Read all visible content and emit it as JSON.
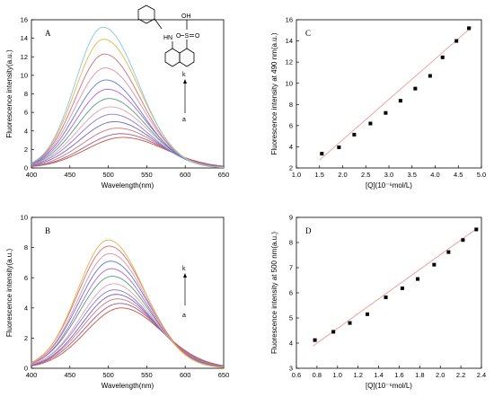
{
  "colors": {
    "spectra": [
      "#c8503c",
      "#a05a8c",
      "#d27878",
      "#6e64c8",
      "#8c78d2",
      "#e6a0b4",
      "#50a078",
      "#b464d2",
      "#5a78dc",
      "#e690a0",
      "#d26e78",
      "#e6b446",
      "#82c8e6"
    ],
    "fit_line": "#f08c8c",
    "points": "#000000",
    "axis": "#000000"
  },
  "annotations": {
    "panel_a": {
      "top": "k",
      "bottom": "a"
    },
    "panel_b": {
      "top": "k",
      "bottom": "a"
    }
  },
  "structure": {
    "name": "8-anilino-1-naphthalenesulfonic acid",
    "labels": {
      "hn": "HN",
      "oh": "OH",
      "s": "S",
      "o1": "O",
      "o2": "O"
    }
  },
  "chart_data": [
    {
      "id": "A",
      "type": "line",
      "title": "A",
      "xlabel": "Wavelength(nm)",
      "ylabel": "Fluorescence intensity(a.u.)",
      "xlim": [
        400,
        650
      ],
      "ylim": [
        0,
        16
      ],
      "xticks": [
        400,
        450,
        500,
        550,
        600,
        650
      ],
      "yticks": [
        0,
        2,
        4,
        6,
        8,
        10,
        12,
        14,
        16
      ],
      "series": [
        {
          "peak_x": 519,
          "peak_y": 3.3,
          "sigma_left": 48,
          "sigma_right": 55
        },
        {
          "peak_x": 516,
          "peak_y": 3.7,
          "sigma_left": 47,
          "sigma_right": 54
        },
        {
          "peak_x": 512,
          "peak_y": 4.3,
          "sigma_left": 46,
          "sigma_right": 52
        },
        {
          "peak_x": 508,
          "peak_y": 5.0,
          "sigma_left": 45,
          "sigma_right": 51
        },
        {
          "peak_x": 505,
          "peak_y": 5.8,
          "sigma_left": 44,
          "sigma_right": 50
        },
        {
          "peak_x": 503,
          "peak_y": 6.6,
          "sigma_left": 43,
          "sigma_right": 50
        },
        {
          "peak_x": 501,
          "peak_y": 7.5,
          "sigma_left": 42,
          "sigma_right": 49
        },
        {
          "peak_x": 499,
          "peak_y": 8.5,
          "sigma_left": 41,
          "sigma_right": 49
        },
        {
          "peak_x": 497,
          "peak_y": 9.5,
          "sigma_left": 40,
          "sigma_right": 48
        },
        {
          "peak_x": 496,
          "peak_y": 10.8,
          "sigma_left": 39,
          "sigma_right": 48
        },
        {
          "peak_x": 495,
          "peak_y": 12.3,
          "sigma_left": 38,
          "sigma_right": 47
        },
        {
          "peak_x": 494,
          "peak_y": 13.9,
          "sigma_left": 37,
          "sigma_right": 47
        },
        {
          "peak_x": 493,
          "peak_y": 15.2,
          "sigma_left": 36,
          "sigma_right": 46
        }
      ]
    },
    {
      "id": "C",
      "type": "scatter",
      "title": "C",
      "xlabel": "[Q](10⁻⁶mol/L)",
      "ylabel": "Fluorescence intensity at 490 nm(a.u.)",
      "xlim": [
        1.0,
        5.0
      ],
      "ylim": [
        2,
        16
      ],
      "xticks": [
        1.0,
        1.5,
        2.0,
        2.5,
        3.0,
        3.5,
        4.0,
        4.5,
        5.0
      ],
      "yticks": [
        2,
        4,
        6,
        8,
        10,
        12,
        14,
        16
      ],
      "points": [
        {
          "x": 1.55,
          "y": 3.35
        },
        {
          "x": 1.92,
          "y": 3.95
        },
        {
          "x": 2.25,
          "y": 5.15
        },
        {
          "x": 2.6,
          "y": 6.2
        },
        {
          "x": 2.93,
          "y": 7.2
        },
        {
          "x": 3.25,
          "y": 8.35
        },
        {
          "x": 3.57,
          "y": 9.5
        },
        {
          "x": 3.89,
          "y": 10.7
        },
        {
          "x": 4.16,
          "y": 12.45
        },
        {
          "x": 4.46,
          "y": 14.0
        },
        {
          "x": 4.73,
          "y": 15.2
        }
      ],
      "fit": {
        "x": [
          1.5,
          4.8
        ],
        "y": [
          2.75,
          15.35
        ]
      }
    },
    {
      "id": "B",
      "type": "line",
      "title": "B",
      "xlabel": "Wavelength(nm)",
      "ylabel": "Fluorescence intensity(a.u.)",
      "xlim": [
        400,
        650
      ],
      "ylim": [
        0,
        10
      ],
      "xticks": [
        400,
        450,
        500,
        550,
        600,
        650
      ],
      "yticks": [
        0,
        2,
        4,
        6,
        8,
        10
      ],
      "series": [
        {
          "peak_x": 517,
          "peak_y": 4.0,
          "sigma_left": 46,
          "sigma_right": 53
        },
        {
          "peak_x": 515,
          "peak_y": 4.3,
          "sigma_left": 46,
          "sigma_right": 52
        },
        {
          "peak_x": 512,
          "peak_y": 4.6,
          "sigma_left": 45,
          "sigma_right": 52
        },
        {
          "peak_x": 510,
          "peak_y": 4.9,
          "sigma_left": 44,
          "sigma_right": 51
        },
        {
          "peak_x": 508,
          "peak_y": 5.2,
          "sigma_left": 44,
          "sigma_right": 51
        },
        {
          "peak_x": 507,
          "peak_y": 5.6,
          "sigma_left": 43,
          "sigma_right": 50
        },
        {
          "peak_x": 505,
          "peak_y": 6.1,
          "sigma_left": 43,
          "sigma_right": 50
        },
        {
          "peak_x": 504,
          "peak_y": 6.6,
          "sigma_left": 42,
          "sigma_right": 49
        },
        {
          "peak_x": 503,
          "peak_y": 7.1,
          "sigma_left": 42,
          "sigma_right": 49
        },
        {
          "peak_x": 502,
          "peak_y": 7.6,
          "sigma_left": 41,
          "sigma_right": 48
        },
        {
          "peak_x": 501,
          "peak_y": 8.1,
          "sigma_left": 41,
          "sigma_right": 48
        },
        {
          "peak_x": 500,
          "peak_y": 8.5,
          "sigma_left": 40,
          "sigma_right": 47
        }
      ]
    },
    {
      "id": "D",
      "type": "scatter",
      "title": "D",
      "xlabel": "[Q](10⁻⁶mol/L)",
      "ylabel": "Fluorescence intensity at 500 nm(a.u.)",
      "xlim": [
        0.6,
        2.4
      ],
      "ylim": [
        3,
        9
      ],
      "xticks": [
        0.6,
        0.8,
        1.0,
        1.2,
        1.4,
        1.6,
        1.8,
        2.0,
        2.2,
        2.4
      ],
      "yticks": [
        3,
        4,
        5,
        6,
        7,
        8,
        9
      ],
      "points": [
        {
          "x": 0.78,
          "y": 4.12
        },
        {
          "x": 0.96,
          "y": 4.45
        },
        {
          "x": 1.12,
          "y": 4.8
        },
        {
          "x": 1.29,
          "y": 5.15
        },
        {
          "x": 1.47,
          "y": 5.82
        },
        {
          "x": 1.63,
          "y": 6.18
        },
        {
          "x": 1.78,
          "y": 6.55
        },
        {
          "x": 1.94,
          "y": 7.12
        },
        {
          "x": 2.08,
          "y": 7.62
        },
        {
          "x": 2.22,
          "y": 8.1
        },
        {
          "x": 2.35,
          "y": 8.52
        }
      ],
      "fit": {
        "x": [
          0.76,
          2.37
        ],
        "y": [
          3.88,
          8.6
        ]
      }
    }
  ]
}
